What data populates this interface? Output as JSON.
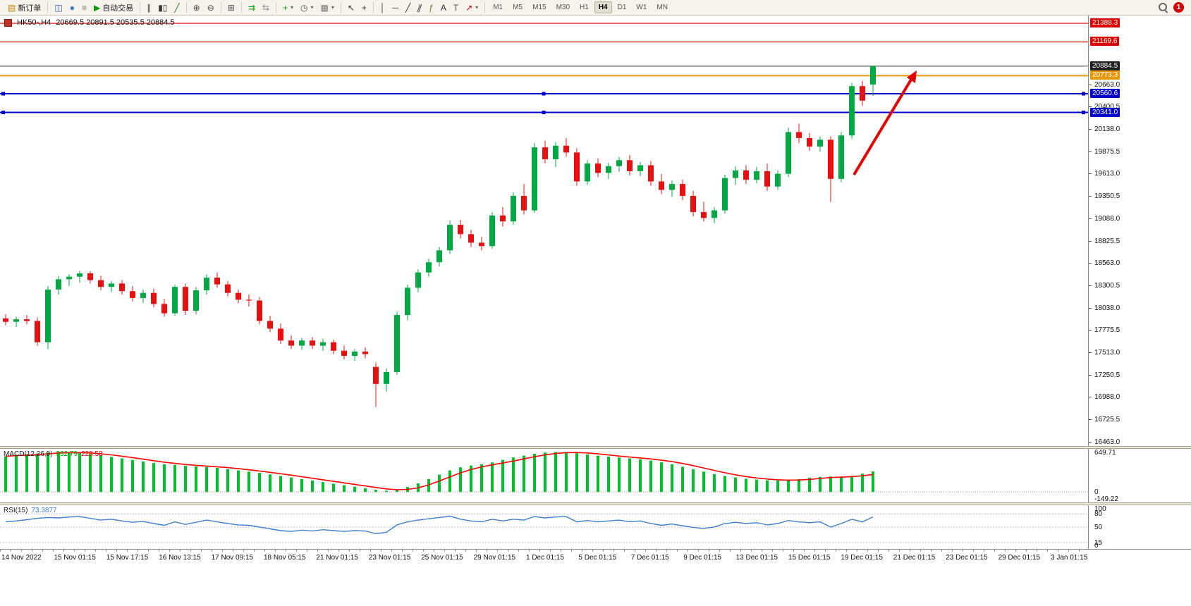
{
  "toolbar": {
    "caret_glyph": "▾",
    "notification_count": "1",
    "timeframes": {
      "items": [
        "M1",
        "M5",
        "M15",
        "M30",
        "H1",
        "H4",
        "D1",
        "W1",
        "MN"
      ],
      "active": "H4"
    },
    "items": [
      {
        "type": "button",
        "name": "new-order-button",
        "glyph": "▤",
        "glyph_color": "#b8860b",
        "label": "新订单"
      },
      {
        "type": "sep"
      },
      {
        "type": "button",
        "name": "new-chart-button",
        "glyph": "◫",
        "glyph_color": "#2563b0"
      },
      {
        "type": "button",
        "name": "profiles-button",
        "glyph": "●",
        "glyph_color": "#3a7abf"
      },
      {
        "type": "button",
        "name": "market-watch-button",
        "glyph": "≡",
        "glyph_color": "#777777"
      },
      {
        "type": "button",
        "name": "auto-trading-button",
        "glyph": "▶",
        "glyph_color": "#0a9a0a",
        "label": "自动交易"
      },
      {
        "type": "sep"
      },
      {
        "type": "button",
        "name": "bar-chart-button",
        "glyph": "∥",
        "glyph_color": "#444444"
      },
      {
        "type": "button",
        "name": "candlestick-chart-button",
        "glyph": "▮▯",
        "glyph_color": "#333333"
      },
      {
        "type": "button",
        "name": "line-chart-button",
        "glyph": "╱",
        "glyph_color": "#2a7a2a"
      },
      {
        "type": "sep"
      },
      {
        "type": "button",
        "name": "zoom-in-button",
        "glyph": "⊕",
        "glyph_color": "#444444"
      },
      {
        "type": "button",
        "name": "zoom-out-button",
        "glyph": "⊖",
        "glyph_color": "#444444"
      },
      {
        "type": "sep"
      },
      {
        "type": "button",
        "name": "tile-windows-button",
        "glyph": "⊞",
        "glyph_color": "#444444"
      },
      {
        "type": "sep"
      },
      {
        "type": "button",
        "name": "auto-scroll-button",
        "glyph": "⇉",
        "glyph_color": "#0a9a0a"
      },
      {
        "type": "button",
        "name": "chart-shift-button",
        "glyph": "⇆",
        "glyph_color": "#888888"
      },
      {
        "type": "sep"
      },
      {
        "type": "button",
        "name": "indicators-button",
        "glyph": "+",
        "glyph_color": "#0a9a0a",
        "caret": true
      },
      {
        "type": "button",
        "name": "periods-button",
        "glyph": "◷",
        "glyph_color": "#555555",
        "caret": true
      },
      {
        "type": "button",
        "name": "templates-button",
        "glyph": "▦",
        "glyph_color": "#777777",
        "caret": true
      },
      {
        "type": "sep"
      },
      {
        "type": "button",
        "name": "cursor-button",
        "glyph": "↖",
        "glyph_color": "#333333"
      },
      {
        "type": "button",
        "name": "crosshair-button",
        "glyph": "+",
        "glyph_color": "#333333"
      },
      {
        "type": "sep"
      },
      {
        "type": "button",
        "name": "vertical-line-button",
        "glyph": "│",
        "glyph_color": "#333333"
      },
      {
        "type": "button",
        "name": "horizontal-line-button",
        "glyph": "─",
        "glyph_color": "#333333"
      },
      {
        "type": "button",
        "name": "trendline-button",
        "glyph": "╱",
        "glyph_color": "#333333"
      },
      {
        "type": "button",
        "name": "channel-button",
        "glyph": "∥",
        "glyph_color": "#333333",
        "rotate": true
      },
      {
        "type": "button",
        "name": "fibonacci-button",
        "glyph": "ƒ",
        "glyph_color": "#8a6d3b"
      },
      {
        "type": "button",
        "name": "text-button",
        "glyph": "A",
        "glyph_color": "#333333"
      },
      {
        "type": "button",
        "name": "text-label-button",
        "glyph": "T",
        "glyph_color": "#555555"
      },
      {
        "type": "button",
        "name": "arrows-button",
        "glyph": "↗",
        "glyph_color": "#c00000",
        "caret": true
      },
      {
        "type": "sep"
      },
      {
        "type": "tf-group"
      },
      {
        "type": "spacer"
      },
      {
        "type": "search"
      },
      {
        "type": "badge"
      }
    ]
  },
  "chart": {
    "header": {
      "symbol_period": "HK50-,H4",
      "ohlc_text": "20669.5 20891.5 20535.5 20884.5"
    },
    "hlines": [
      {
        "price": 21388.3,
        "color": "#DD0000",
        "width": 1.2,
        "handles": false
      },
      {
        "price": 21169.6,
        "color": "#DD0000",
        "width": 1.2,
        "handles": false
      },
      {
        "price": 20884.5,
        "color": "#3C3C3C",
        "width": 1,
        "handles": false
      },
      {
        "price": 20773.3,
        "color": "#E8960C",
        "width": 2,
        "handles": false
      },
      {
        "price": 20560.6,
        "color": "#0000CC",
        "width": 2,
        "handles": true
      },
      {
        "price": 20341.0,
        "color": "#0000CC",
        "width": 2,
        "handles": true
      }
    ],
    "price_axis": {
      "plain_ticks": [
        "20663.0",
        "20400.5",
        "20138.0",
        "19875.5",
        "19613.0",
        "19350.5",
        "19088.0",
        "18825.5",
        "18563.0",
        "18300.5",
        "18038.0",
        "17775.5",
        "17513.0",
        "17250.5",
        "16988.0",
        "16725.5",
        "16463.0"
      ],
      "badges": [
        {
          "value": "21388.3",
          "price": 21388.3,
          "bg": "#DD0000"
        },
        {
          "value": "21169.6",
          "price": 21169.6,
          "bg": "#DD0000"
        },
        {
          "value": "20884.5",
          "price": 20884.5,
          "bg": "#1F1F1F"
        },
        {
          "value": "20773.3",
          "price": 20773.3,
          "bg": "#E8960C"
        },
        {
          "value": "20560.6",
          "price": 20560.6,
          "bg": "#0000CC"
        },
        {
          "value": "20341.0",
          "price": 20341.0,
          "bg": "#0000CC"
        }
      ]
    },
    "annotation_arrow": {
      "color": "#E00000"
    }
  },
  "chart_data": {
    "type": "candlestick",
    "symbol": "HK50-",
    "period": "H4",
    "ylim": [
      16420,
      21480
    ],
    "colors": {
      "bull": "#00A843",
      "bear": "#E61010"
    },
    "last_ohlc": {
      "open": 20669.5,
      "high": 20891.5,
      "low": 20535.5,
      "close": 20884.5
    },
    "horizontal_levels": [
      21388.3,
      21169.6,
      20884.5,
      20773.3,
      20560.6,
      20341.0
    ],
    "candles": [
      [
        17920,
        17970,
        17840,
        17880
      ],
      [
        17880,
        17940,
        17820,
        17910
      ],
      [
        17910,
        17960,
        17850,
        17890
      ],
      [
        17890,
        17930,
        17600,
        17640
      ],
      [
        17640,
        18300,
        17560,
        18260
      ],
      [
        18260,
        18420,
        18200,
        18380
      ],
      [
        18380,
        18440,
        18300,
        18410
      ],
      [
        18410,
        18480,
        18340,
        18450
      ],
      [
        18450,
        18475,
        18330,
        18370
      ],
      [
        18370,
        18420,
        18250,
        18290
      ],
      [
        18290,
        18360,
        18230,
        18330
      ],
      [
        18330,
        18370,
        18200,
        18240
      ],
      [
        18240,
        18300,
        18120,
        18160
      ],
      [
        18160,
        18260,
        18100,
        18220
      ],
      [
        18220,
        18270,
        18050,
        18090
      ],
      [
        18090,
        18150,
        17940,
        17980
      ],
      [
        17980,
        18320,
        17950,
        18290
      ],
      [
        18290,
        18330,
        17960,
        18010
      ],
      [
        18010,
        18290,
        17970,
        18250
      ],
      [
        18250,
        18440,
        18200,
        18400
      ],
      [
        18400,
        18460,
        18280,
        18320
      ],
      [
        18320,
        18360,
        18180,
        18220
      ],
      [
        18220,
        18260,
        18100,
        18140
      ],
      [
        18140,
        18200,
        18060,
        18130
      ],
      [
        18130,
        18170,
        17850,
        17890
      ],
      [
        17890,
        17950,
        17760,
        17800
      ],
      [
        17800,
        17860,
        17620,
        17660
      ],
      [
        17660,
        17720,
        17560,
        17600
      ],
      [
        17600,
        17690,
        17550,
        17660
      ],
      [
        17660,
        17700,
        17560,
        17600
      ],
      [
        17600,
        17680,
        17540,
        17640
      ],
      [
        17640,
        17670,
        17500,
        17540
      ],
      [
        17540,
        17600,
        17440,
        17480
      ],
      [
        17480,
        17560,
        17420,
        17530
      ],
      [
        17530,
        17580,
        17450,
        17500
      ],
      [
        17350,
        17400,
        16880,
        17150
      ],
      [
        17150,
        17330,
        17060,
        17290
      ],
      [
        17290,
        18000,
        17260,
        17960
      ],
      [
        17960,
        18320,
        17900,
        18280
      ],
      [
        18280,
        18500,
        18230,
        18460
      ],
      [
        18460,
        18620,
        18410,
        18580
      ],
      [
        18580,
        18760,
        18530,
        18720
      ],
      [
        18720,
        19070,
        18680,
        19020
      ],
      [
        19020,
        19080,
        18860,
        18910
      ],
      [
        18910,
        18960,
        18760,
        18810
      ],
      [
        18810,
        18880,
        18720,
        18770
      ],
      [
        18770,
        19170,
        18740,
        19130
      ],
      [
        19130,
        19230,
        19000,
        19060
      ],
      [
        19060,
        19400,
        19020,
        19360
      ],
      [
        19360,
        19500,
        19140,
        19190
      ],
      [
        19190,
        19980,
        19160,
        19930
      ],
      [
        19930,
        20010,
        19740,
        19790
      ],
      [
        19790,
        19990,
        19700,
        19950
      ],
      [
        19950,
        20040,
        19820,
        19870
      ],
      [
        19870,
        19920,
        19480,
        19530
      ],
      [
        19530,
        19780,
        19490,
        19740
      ],
      [
        19740,
        19800,
        19580,
        19630
      ],
      [
        19630,
        19750,
        19560,
        19710
      ],
      [
        19710,
        19820,
        19640,
        19780
      ],
      [
        19780,
        19840,
        19600,
        19650
      ],
      [
        19650,
        19760,
        19590,
        19720
      ],
      [
        19720,
        19770,
        19480,
        19530
      ],
      [
        19530,
        19620,
        19380,
        19430
      ],
      [
        19430,
        19540,
        19350,
        19500
      ],
      [
        19500,
        19550,
        19310,
        19360
      ],
      [
        19360,
        19420,
        19120,
        19170
      ],
      [
        19170,
        19290,
        19060,
        19100
      ],
      [
        19100,
        19230,
        19040,
        19190
      ],
      [
        19190,
        19610,
        19150,
        19570
      ],
      [
        19570,
        19710,
        19490,
        19660
      ],
      [
        19660,
        19720,
        19500,
        19550
      ],
      [
        19550,
        19700,
        19510,
        19650
      ],
      [
        19650,
        19740,
        19420,
        19470
      ],
      [
        19470,
        19660,
        19430,
        19620
      ],
      [
        19620,
        20160,
        19580,
        20110
      ],
      [
        20110,
        20210,
        19980,
        20040
      ],
      [
        20040,
        20100,
        19890,
        19940
      ],
      [
        19940,
        20060,
        19880,
        20020
      ],
      [
        20020,
        20060,
        19290,
        19560
      ],
      [
        19560,
        20110,
        19520,
        20070
      ],
      [
        20070,
        20690,
        20030,
        20650
      ],
      [
        20650,
        20710,
        20420,
        20480
      ],
      [
        20669.5,
        20891.5,
        20535.5,
        20884.5
      ]
    ]
  },
  "macd": {
    "label": "MACD(12,26,9)",
    "value_main": "332.79",
    "value_signal": "228.58",
    "scale_max": 700,
    "scale_min": -170,
    "axis": [
      {
        "label": "649.71",
        "value": 649.71
      },
      {
        "label": "0",
        "value": 0
      },
      {
        "label": "-149.22",
        "value": -149.22
      }
    ],
    "colors": {
      "histogram": "#00BE2C",
      "signal": "#FF0000"
    },
    "histogram": [
      580,
      600,
      615,
      625,
      640,
      648,
      640,
      630,
      615,
      595,
      570,
      545,
      520,
      495,
      470,
      450,
      440,
      425,
      415,
      405,
      390,
      370,
      350,
      330,
      310,
      285,
      260,
      235,
      210,
      185,
      160,
      135,
      110,
      85,
      60,
      35,
      20,
      30,
      80,
      140,
      210,
      280,
      350,
      400,
      430,
      450,
      480,
      520,
      560,
      590,
      620,
      640,
      648,
      645,
      630,
      610,
      590,
      575,
      560,
      545,
      530,
      510,
      480,
      450,
      410,
      370,
      330,
      290,
      260,
      235,
      215,
      200,
      190,
      185,
      190,
      210,
      230,
      245,
      250,
      240,
      260,
      300,
      332.79
    ]
  },
  "rsi": {
    "label": "RSI(15)",
    "value": "73.3877",
    "color": "#3E7FD0",
    "levels": [
      80,
      50,
      15
    ],
    "axis": [
      {
        "label": "100",
        "value": 100
      },
      {
        "label": "80",
        "value": 80
      },
      {
        "label": "50",
        "value": 50
      },
      {
        "label": "15",
        "value": 15
      },
      {
        "label": "0",
        "value": 0
      }
    ],
    "values": [
      62,
      64,
      67,
      70,
      72,
      71,
      73,
      74,
      70,
      66,
      68,
      64,
      61,
      63,
      58,
      54,
      62,
      56,
      61,
      66,
      62,
      58,
      55,
      54,
      50,
      46,
      42,
      40,
      43,
      41,
      44,
      42,
      40,
      42,
      41,
      35,
      38,
      55,
      62,
      66,
      69,
      72,
      75,
      68,
      64,
      62,
      68,
      64,
      68,
      66,
      74,
      71,
      73,
      74,
      62,
      65,
      62,
      64,
      66,
      62,
      64,
      58,
      54,
      57,
      53,
      49,
      47,
      50,
      58,
      61,
      58,
      60,
      55,
      58,
      65,
      62,
      60,
      62,
      50,
      58,
      68,
      62,
      73.3877
    ]
  },
  "time_axis": {
    "labels": [
      "14 Nov 2022",
      "15 Nov 01:15",
      "15 Nov 17:15",
      "16 Nov 13:15",
      "17 Nov 09:15",
      "18 Nov 05:15",
      "21 Nov 01:15",
      "23 Nov 01:15",
      "25 Nov 01:15",
      "29 Nov 01:15",
      "1 Dec 01:15",
      "5 Dec 01:15",
      "7 Dec 01:15",
      "9 Dec 01:15",
      "13 Dec 01:15",
      "15 Dec 01:15",
      "19 Dec 01:15",
      "21 Dec 01:15",
      "23 Dec 01:15",
      "29 Dec 01:15",
      "3 Jan 01:15"
    ]
  }
}
